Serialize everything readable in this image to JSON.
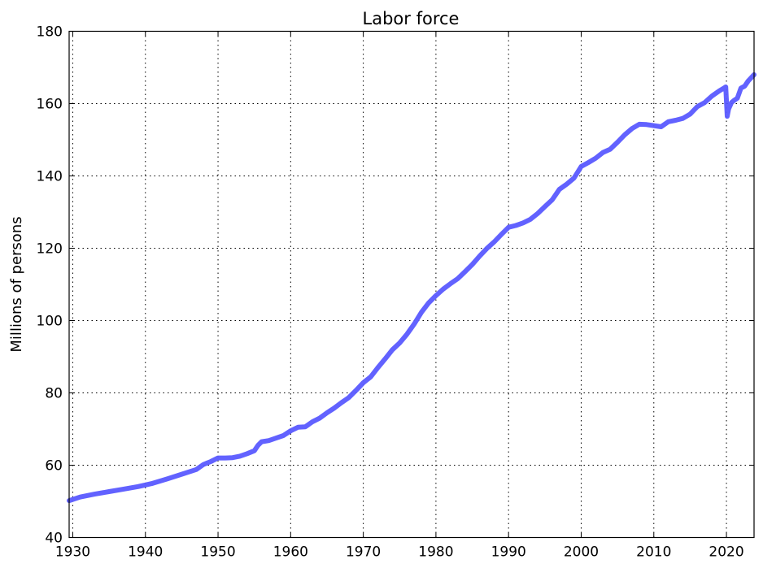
{
  "chart_data": {
    "type": "line",
    "title": "Labor force",
    "xlabel": "",
    "ylabel": "Millions of persons",
    "xlim": [
      1929.5,
      2023.8
    ],
    "ylim": [
      40,
      180
    ],
    "xticks": [
      1930,
      1940,
      1950,
      1960,
      1970,
      1980,
      1990,
      2000,
      2010,
      2020
    ],
    "yticks": [
      40,
      60,
      80,
      100,
      120,
      140,
      160,
      180
    ],
    "grid": true,
    "legend": "none",
    "series": [
      {
        "name": "",
        "color": "#5a5aff",
        "x": [
          1929.5,
          1931,
          1933,
          1935,
          1937,
          1939,
          1941,
          1943,
          1945,
          1947,
          1948,
          1949,
          1950,
          1951,
          1952,
          1953,
          1954,
          1955,
          1955.5,
          1956,
          1957,
          1958,
          1959,
          1960,
          1961,
          1962,
          1963,
          1964,
          1965,
          1966,
          1967,
          1968,
          1969,
          1970,
          1971,
          1972,
          1973,
          1974,
          1975,
          1976,
          1977,
          1978,
          1979,
          1980,
          1981,
          1982,
          1983,
          1984,
          1985,
          1986,
          1987,
          1988,
          1989,
          1990,
          1991,
          1992,
          1993,
          1994,
          1995,
          1996,
          1997,
          1998,
          1999,
          2000,
          2001,
          2002,
          2003,
          2004,
          2005,
          2006,
          2007,
          2008,
          2009,
          2010,
          2011,
          2012,
          2013,
          2014,
          2015,
          2016,
          2017,
          2018,
          2019,
          2019.9,
          2020.1,
          2020.3,
          2020.7,
          2021,
          2021.5,
          2022,
          2022.5,
          2023,
          2023.8
        ],
        "values": [
          50.2,
          51.2,
          52.0,
          52.7,
          53.4,
          54.1,
          55.0,
          56.2,
          57.5,
          58.8,
          60.2,
          61.0,
          62.0,
          62.0,
          62.1,
          62.5,
          63.2,
          64.0,
          65.5,
          66.5,
          66.8,
          67.5,
          68.2,
          69.5,
          70.5,
          70.6,
          72.0,
          73.0,
          74.5,
          75.8,
          77.3,
          78.7,
          80.7,
          82.8,
          84.4,
          87.0,
          89.4,
          91.9,
          93.8,
          96.2,
          99.0,
          102.3,
          104.9,
          106.9,
          108.7,
          110.2,
          111.6,
          113.5,
          115.5,
          117.8,
          119.9,
          121.7,
          123.8,
          125.8,
          126.3,
          127.0,
          128.0,
          129.6,
          131.5,
          133.4,
          136.3,
          137.7,
          139.4,
          142.6,
          143.7,
          144.9,
          146.5,
          147.4,
          149.3,
          151.4,
          153.1,
          154.3,
          154.2,
          153.9,
          153.6,
          155.0,
          155.4,
          155.9,
          157.1,
          159.2,
          160.3,
          162.1,
          163.5,
          164.6,
          156.5,
          158.5,
          160.3,
          160.8,
          161.5,
          164.3,
          164.8,
          166.3,
          168.0
        ]
      }
    ]
  }
}
